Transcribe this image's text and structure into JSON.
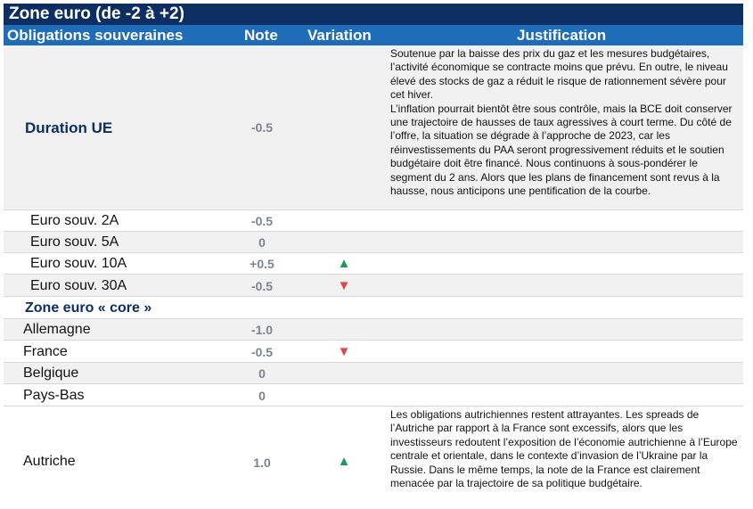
{
  "title": "Zone euro (de -2 à +2)",
  "headers": {
    "col1": "Obligations souveraines",
    "col2": "Note",
    "col3": "Variation",
    "col4": "Justification"
  },
  "duration": {
    "label": "Duration UE",
    "note": "-0.5",
    "justification_p1": "Soutenue par la baisse des prix du gaz et les mesures budgétaires, l’activité économique se contracte moins que prévu. En outre, le niveau élevé des stocks de gaz a réduit le risque de rationnement sévère pour cet hiver.",
    "justification_p2": "L’inflation pourrait bientôt être sous contrôle, mais la BCE doit conserver une trajectoire de hausses de taux agressives à court terme. Du côté de l’offre, la situation se dégrade à l’approche de 2023, car les réinvestissements du PAA seront progressivement réduits et le soutien budgétaire doit être financé. Nous continuons à sous-pondérer le segment du 2 ans. Alors que les plans de financement sont revus à la hausse, nous anticipons une pentification de la courbe."
  },
  "rows": [
    {
      "label": "Euro souv. 2A",
      "note": "-0.5",
      "variation": ""
    },
    {
      "label": "Euro souv. 5A",
      "note": "0",
      "variation": ""
    },
    {
      "label": "Euro souv. 10A",
      "note": "+0.5",
      "variation": "▲"
    },
    {
      "label": "Euro souv. 30A",
      "note": "-0.5",
      "variation": "▼"
    },
    {
      "label": "Zone euro « core »",
      "note": "",
      "variation": ""
    },
    {
      "label": "Allemagne",
      "note": "-1.0",
      "variation": ""
    },
    {
      "label": "France",
      "note": "-0.5",
      "variation": "▼"
    },
    {
      "label": "Belgique",
      "note": "0",
      "variation": ""
    },
    {
      "label": "Pays-Bas",
      "note": "0",
      "variation": ""
    }
  ],
  "austria": {
    "label": "Autriche",
    "note": "1.0",
    "variation": "▲",
    "justification": "Les obligations autrichiennes restent attrayantes. Les spreads de l’Autriche par rapport à la France sont excessifs, alors que les investisseurs redoutent l’exposition de l’économie autrichienne à l’Europe centrale et orientale, dans le contexte d’invasion de l’Ukraine par la Russie. Dans le même temps, la note de la France est clairement menacée par la trajectoire de sa politique budgétaire."
  },
  "colors": {
    "navy": "#0d2e63",
    "blue": "#1f6cb8",
    "up": "#1f9a5b",
    "down": "#e04848"
  }
}
